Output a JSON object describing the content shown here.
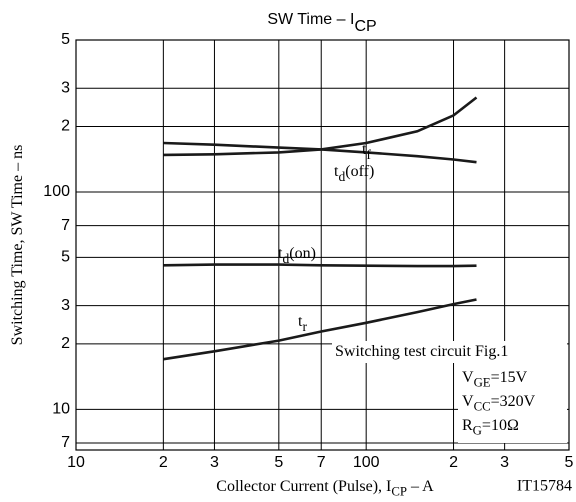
{
  "chart_data": {
    "type": "line",
    "title": {
      "base": "SW Time  –  I",
      "sub": "CP"
    },
    "x_label": {
      "base": "Collector Current (Pulse), I",
      "sub": "CP",
      "suffix": "  –  A"
    },
    "y_label": {
      "base": "Switching Time, SW Time  –  ns"
    },
    "code": "IT15784",
    "log_x": true,
    "log_y": true,
    "grid": true,
    "xlim": [
      10,
      500
    ],
    "ylim": [
      6.5,
      500
    ],
    "xticks": [
      10,
      {
        "value": 20,
        "label": "2"
      },
      {
        "value": 30,
        "label": "3"
      },
      {
        "value": 50,
        "label": "5"
      },
      {
        "value": 70,
        "label": "7"
      },
      100,
      {
        "value": 200,
        "label": "2"
      },
      {
        "value": 300,
        "label": "3"
      },
      {
        "value": 500,
        "label": "5"
      }
    ],
    "yticks": [
      {
        "value": 7,
        "label": "7"
      },
      10,
      {
        "value": 20,
        "label": "2"
      },
      {
        "value": 30,
        "label": "3"
      },
      {
        "value": 50,
        "label": "5"
      },
      {
        "value": 70,
        "label": "7"
      },
      100,
      {
        "value": 200,
        "label": "2"
      },
      {
        "value": 300,
        "label": "3"
      },
      {
        "value": 500,
        "label": "5"
      }
    ],
    "series": [
      {
        "label": {
          "base": "t",
          "sub": "f"
        },
        "color": "#1a1a1a",
        "x": [
          20,
          30,
          50,
          70,
          100,
          150,
          200,
          240
        ],
        "values": [
          148,
          149,
          152,
          157,
          168,
          190,
          225,
          272
        ]
      },
      {
        "label": {
          "base": "t",
          "sub": "d",
          "suffix": "(off)"
        },
        "color": "#1a1a1a",
        "x": [
          20,
          30,
          50,
          70,
          100,
          150,
          200,
          240
        ],
        "values": [
          168,
          165,
          160,
          157,
          152,
          146,
          141,
          137
        ]
      },
      {
        "label": {
          "base": "t",
          "sub": "d",
          "suffix": "(on)"
        },
        "color": "#1a1a1a",
        "x": [
          20,
          30,
          50,
          70,
          100,
          150,
          200,
          240
        ],
        "values": [
          46,
          46.3,
          46.3,
          46,
          45.8,
          45.6,
          45.6,
          45.8
        ]
      },
      {
        "label": {
          "base": "t",
          "sub": "r"
        },
        "color": "#1a1a1a",
        "x": [
          20,
          30,
          50,
          70,
          100,
          150,
          200,
          240
        ],
        "values": [
          17,
          18.5,
          20.7,
          22.8,
          25,
          28,
          30.5,
          32
        ]
      }
    ],
    "note": [
      {
        "base": "Switching test circuit Fig.1"
      },
      {
        "base": "V",
        "sub": "GE",
        "suffix": "=15V"
      },
      {
        "base": "V",
        "sub": "CC",
        "suffix": "=320V"
      },
      {
        "base": "R",
        "sub": "G",
        "suffix": "=10Ω"
      }
    ]
  }
}
